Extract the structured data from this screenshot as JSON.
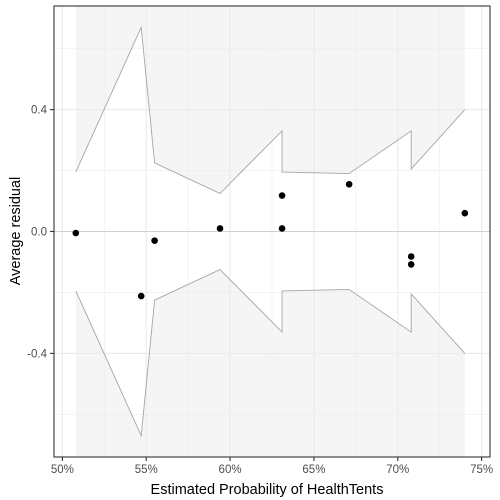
{
  "chart_data": {
    "type": "scatter",
    "title": "",
    "xlabel": "Estimated Probability of HealthTents",
    "ylabel": "Average residual",
    "xlim": [
      0.495,
      0.755
    ],
    "ylim": [
      -0.74,
      0.74
    ],
    "x_ticks": [
      0.5,
      0.55,
      0.6,
      0.65,
      0.7,
      0.75
    ],
    "x_tick_labels": [
      "50%",
      "55%",
      "60%",
      "65%",
      "70%",
      "75%"
    ],
    "y_ticks": [
      -0.4,
      0.0,
      0.4
    ],
    "y_tick_labels": [
      "-0.4",
      "0.0",
      "0.4"
    ],
    "grid": true,
    "points": {
      "x": [
        0.508,
        0.547,
        0.555,
        0.594,
        0.631,
        0.631,
        0.671,
        0.708,
        0.708,
        0.74
      ],
      "y": [
        -0.005,
        -0.212,
        -0.03,
        0.01,
        0.118,
        0.01,
        0.155,
        -0.082,
        -0.108,
        0.06
      ]
    },
    "bin_band": {
      "x": [
        0.508,
        0.547,
        0.555,
        0.594,
        0.631,
        0.631,
        0.671,
        0.708,
        0.708,
        0.74
      ],
      "upper": [
        0.195,
        0.67,
        0.225,
        0.125,
        0.33,
        0.195,
        0.19,
        0.33,
        0.205,
        0.4
      ]
    },
    "colors": {
      "points": "#000000",
      "band_line": "#a6a6a6",
      "outer_fill": "#f5f5f5",
      "grid": "#ebebeb",
      "zero_line": "#c8c8c8",
      "panel_border": "#333333"
    }
  }
}
